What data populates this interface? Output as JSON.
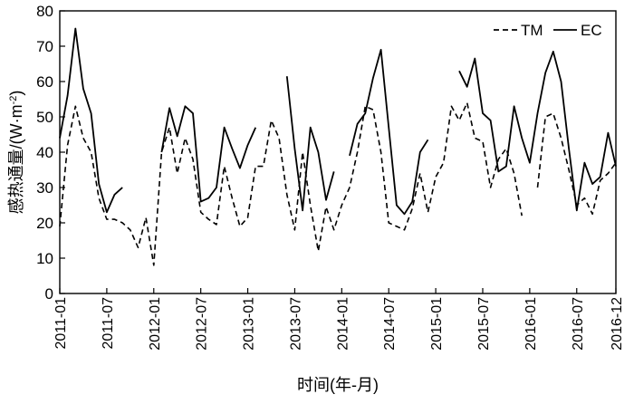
{
  "chart_data": {
    "type": "line",
    "xlabel": "时间(年-月)",
    "ylabel_main": "感热通量/(W·m",
    "ylabel_sup": "-2",
    "ylabel_close": ")",
    "ylim": [
      0,
      80
    ],
    "yticks": [
      "0",
      "10",
      "20",
      "30",
      "40",
      "50",
      "60",
      "70",
      "80"
    ],
    "xticks": [
      {
        "label": "2011-01",
        "index": 0
      },
      {
        "label": "2011-07",
        "index": 6
      },
      {
        "label": "2012-01",
        "index": 12
      },
      {
        "label": "2012-07",
        "index": 18
      },
      {
        "label": "2013-01",
        "index": 24
      },
      {
        "label": "2013-07",
        "index": 30
      },
      {
        "label": "2014-01",
        "index": 36
      },
      {
        "label": "2014-07",
        "index": 42
      },
      {
        "label": "2015-01",
        "index": 48
      },
      {
        "label": "2015-07",
        "index": 54
      },
      {
        "label": "2016-01",
        "index": 60
      },
      {
        "label": "2016-07",
        "index": 66
      },
      {
        "label": "2016-12",
        "index": 71
      }
    ],
    "legend_position": "top-right",
    "series": [
      {
        "name": "TM",
        "style": "dashed",
        "color": "#000000",
        "values": [
          19,
          42,
          53,
          44,
          40,
          27,
          21,
          21,
          20,
          18,
          13,
          21.5,
          8,
          40,
          47,
          34,
          44,
          38,
          23,
          21,
          19.5,
          36,
          27,
          19,
          21.5,
          36,
          36,
          49,
          44,
          28,
          18,
          40,
          25,
          12,
          24.5,
          18,
          25,
          30,
          40,
          53,
          52,
          40,
          20,
          19,
          18,
          24,
          34,
          23,
          33,
          37,
          53,
          49,
          54,
          44,
          43,
          30,
          38,
          41,
          34,
          22,
          null,
          30,
          50,
          51,
          44,
          35,
          25,
          27,
          22.5,
          32,
          34,
          37
        ]
      },
      {
        "name": "EC",
        "style": "solid",
        "color": "#000000",
        "values": [
          44,
          56,
          75,
          58,
          51,
          31,
          23,
          28,
          30,
          null,
          null,
          null,
          null,
          40,
          52.5,
          44.5,
          53,
          51,
          26,
          27,
          30,
          47,
          41,
          35.5,
          42,
          47,
          null,
          null,
          null,
          61.5,
          41,
          23.5,
          47,
          40,
          26.5,
          34.5,
          null,
          39,
          48,
          51,
          61,
          69,
          47,
          25,
          22.5,
          26,
          40,
          43.5,
          null,
          null,
          null,
          63,
          58.5,
          66.5,
          51,
          49,
          34.5,
          36,
          53,
          44,
          37,
          51,
          62.5,
          68.5,
          60,
          41,
          23.5,
          37,
          31,
          33,
          45.5,
          36
        ]
      }
    ]
  }
}
